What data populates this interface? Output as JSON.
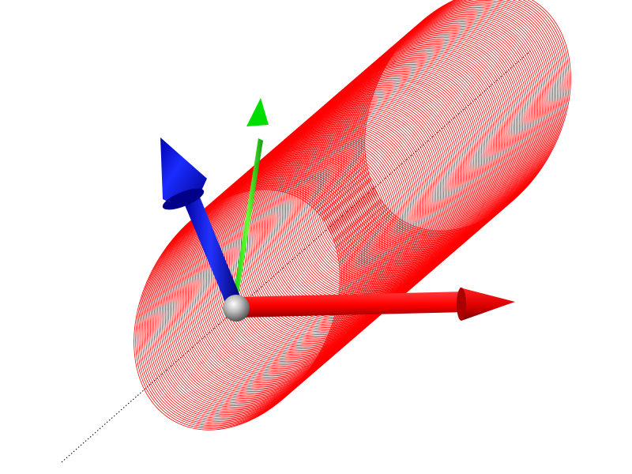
{
  "scene": {
    "background_color": "#ffffff",
    "cylinder": {
      "shape": "cylinder-wireframe",
      "color": "#ff0000"
    },
    "axis_line": {
      "style": "dotted",
      "color": "#000000"
    },
    "triad": {
      "x_arrow_color": "#ff0000",
      "x_arrow_shadow": "#b30000",
      "y_arrow_color": "#00dd00",
      "z_arrow_color": "#0000ff",
      "z_arrow_highlight": "#4455ff",
      "origin_sphere_color": "#9a9a9a"
    }
  }
}
